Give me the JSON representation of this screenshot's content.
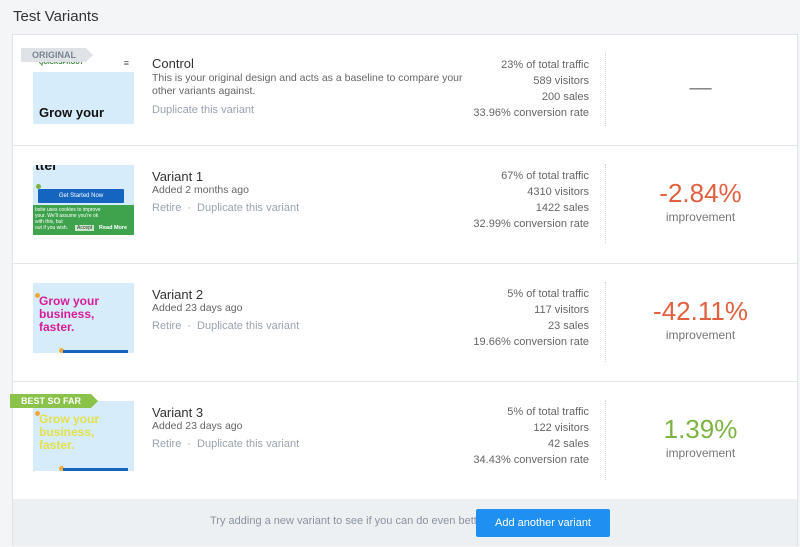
{
  "section_title": "Test Variants",
  "variants": [
    {
      "ribbon": "ORIGINAL",
      "name": "Control",
      "description": "This is your original design and acts as a baseline to compare your other variants against.",
      "duplicate_label": "Duplicate this variant",
      "traffic": "23% of total traffic",
      "visitors": "589 visitors",
      "sales": "200 sales",
      "conversion": "33.96% conversion rate",
      "result": "––",
      "thumb": {
        "logo": "QUICKSPROUT",
        "menu": "≡",
        "hero": "Grow your"
      }
    },
    {
      "name": "Variant 1",
      "added": "Added 2 months ago",
      "retire_label": "Retire",
      "separator": "·",
      "duplicate_label": "Duplicate this variant",
      "traffic": "67% of total traffic",
      "visitors": "4310 visitors",
      "sales": "1422 sales",
      "conversion": "32.99% conversion rate",
      "result": "-2.84%",
      "result_label": "improvement",
      "thumb": {
        "hero": "tter",
        "button": "Get Started Now",
        "cookie_text": "bsite uses cookies to improve your. We'll assume you're ok with this, but",
        "cookie_text2": "out if you wish.",
        "accept": "Accept",
        "read_more": "Read More"
      }
    },
    {
      "name": "Variant 2",
      "added": "Added 23 days ago",
      "retire_label": "Retire",
      "separator": "·",
      "duplicate_label": "Duplicate this variant",
      "traffic": "5% of total traffic",
      "visitors": "117 visitors",
      "sales": "23 sales",
      "conversion": "19.66% conversion rate",
      "result": "-42.11%",
      "result_label": "improvement",
      "thumb": {
        "hero": "Grow your business, faster."
      }
    },
    {
      "ribbon": "BEST SO FAR",
      "name": "Variant 3",
      "added": "Added 23 days ago",
      "retire_label": "Retire",
      "separator": "·",
      "duplicate_label": "Duplicate this variant",
      "traffic": "5% of total traffic",
      "visitors": "122 visitors",
      "sales": "42 sales",
      "conversion": "34.43% conversion rate",
      "result": "1.39%",
      "result_label": "improvement",
      "thumb": {
        "hero": "Grow your business, faster."
      }
    }
  ],
  "footer": {
    "text": "Try adding a new variant to see if you can do even better",
    "button_label": "Add another variant"
  },
  "colors": {
    "negative": "#e0603f",
    "positive": "#7cb342",
    "accent": "#1f8ff1",
    "best_ribbon": "#8bc34a",
    "thumb_bg": "#d7ecfb",
    "hero_magenta": "#d81b9a",
    "hero_yellow": "#e3e04a"
  },
  "icons": {
    "menu": "hamburger-menu-icon"
  }
}
